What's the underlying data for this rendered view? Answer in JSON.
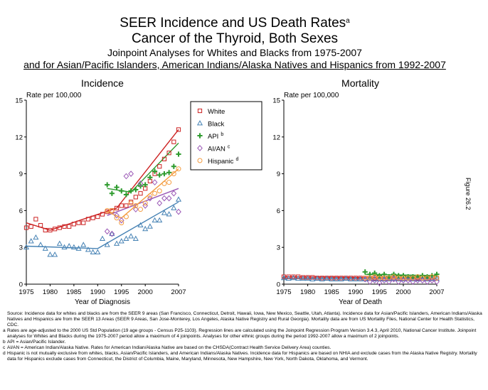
{
  "title": {
    "line1": "SEER Incidence and US Death Rates",
    "line1_sup": "a",
    "line2": "Cancer of the Thyroid, Both Sexes",
    "line3": "Joinpoint Analyses for Whites and Blacks from 1975-2007",
    "line4": "and for Asian/Pacific Islanders, American Indians/Alaska Natives and Hispanics from 1992-2007"
  },
  "figure_label": "Figure 26.2",
  "legend": [
    {
      "key": "white",
      "label": "White",
      "sup": "",
      "color": "#cc2222",
      "marker": "square"
    },
    {
      "key": "black",
      "label": "Black",
      "sup": "",
      "color": "#4682b4",
      "marker": "triangle"
    },
    {
      "key": "api",
      "label": "API",
      "sup": "b",
      "color": "#2e9b2e",
      "marker": "plus"
    },
    {
      "key": "aian",
      "label": "AI/AN",
      "sup": "c",
      "color": "#9b59b6",
      "marker": "diamond"
    },
    {
      "key": "hisp",
      "label": "Hispanic",
      "sup": "d",
      "color": "#f39c40",
      "marker": "circle"
    }
  ],
  "chart_data": [
    {
      "type": "scatter",
      "title": "Incidence",
      "ylabel": "Rate per 100,000",
      "xlabel": "Year of Diagnosis",
      "ylim": [
        0,
        15
      ],
      "xlim": [
        1975,
        2007
      ],
      "yticks": [
        0,
        3,
        6,
        9,
        12,
        15
      ],
      "xticks": [
        "1975",
        "1980",
        "1985",
        "1990",
        "1995",
        "2000",
        "2007"
      ],
      "xtick_values": [
        1975,
        1980,
        1985,
        1990,
        1995,
        2000,
        2007
      ],
      "series": [
        {
          "key": "white",
          "x_start": 1975,
          "values": [
            4.6,
            4.7,
            5.3,
            4.8,
            4.4,
            4.4,
            4.5,
            4.6,
            4.7,
            4.7,
            4.9,
            5.0,
            5.0,
            5.3,
            5.4,
            5.5,
            5.7,
            5.9,
            6.0,
            6.2,
            6.4,
            6.4,
            6.7,
            7.1,
            7.4,
            7.8,
            8.4,
            9.0,
            9.6,
            10.2,
            10.7,
            11.6,
            12.6
          ],
          "fit_x": [
            1975,
            1980,
            1994,
            2007
          ],
          "fit_y": [
            5.0,
            4.4,
            6.2,
            12.6
          ]
        },
        {
          "key": "black",
          "x_start": 1975,
          "values": [
            3.0,
            3.5,
            3.8,
            3.2,
            2.9,
            2.4,
            2.4,
            3.3,
            3.0,
            3.1,
            3.0,
            2.9,
            3.2,
            2.8,
            2.6,
            2.6,
            3.7,
            3.2,
            4.1,
            3.3,
            3.5,
            3.7,
            3.9,
            3.7,
            4.8,
            4.5,
            4.7,
            5.2,
            5.2,
            5.8,
            5.7,
            6.2,
            6.9
          ],
          "fit_x": [
            1975,
            1990,
            2007
          ],
          "fit_y": [
            3.1,
            2.9,
            6.7
          ]
        },
        {
          "key": "api",
          "x_start": 1992,
          "values": [
            8.1,
            7.4,
            7.9,
            7.6,
            7.3,
            7.6,
            7.7,
            8.0,
            8.1,
            8.7,
            9.2,
            8.9,
            9.0,
            9.1,
            9.6,
            10.6
          ],
          "fit_x": [
            1992,
            1997,
            2007
          ],
          "fit_y": [
            7.8,
            7.5,
            11.5
          ]
        },
        {
          "key": "aian",
          "x_start": 1992,
          "values": [
            4.3,
            4.1,
            5.6,
            5.2,
            8.8,
            9.0,
            6.1,
            8.2,
            6.4,
            7.0,
            8.3,
            6.6,
            7.0,
            7.0,
            7.4,
            5.9
          ],
          "fit_x": [
            1992,
            2007
          ],
          "fit_y": [
            5.6,
            7.8
          ]
        },
        {
          "key": "hisp",
          "x_start": 1992,
          "values": [
            6.0,
            6.0,
            5.4,
            5.0,
            5.5,
            6.6,
            6.4,
            6.1,
            6.6,
            7.2,
            7.4,
            7.6,
            8.2,
            8.3,
            9.0,
            9.4
          ],
          "fit_x": [
            1992,
            1995,
            2007
          ],
          "fit_y": [
            5.9,
            5.4,
            9.4
          ]
        }
      ]
    },
    {
      "type": "scatter",
      "title": "Mortality",
      "ylabel": "Rate per 100,000",
      "xlabel": "Year of Death",
      "ylim": [
        0,
        15
      ],
      "xlim": [
        1975,
        2007
      ],
      "yticks": [
        0,
        3,
        6,
        9,
        12,
        15
      ],
      "xticks": [
        "1975",
        "1980",
        "1985",
        "1990",
        "1995",
        "2000",
        "2007"
      ],
      "xtick_values": [
        1975,
        1980,
        1985,
        1990,
        1995,
        2000,
        2007
      ],
      "series": [
        {
          "key": "white",
          "x_start": 1975,
          "values": [
            0.6,
            0.6,
            0.6,
            0.6,
            0.55,
            0.55,
            0.55,
            0.5,
            0.5,
            0.5,
            0.5,
            0.5,
            0.5,
            0.5,
            0.5,
            0.5,
            0.5,
            0.5,
            0.5,
            0.5,
            0.5,
            0.5,
            0.5,
            0.5,
            0.5,
            0.5,
            0.5,
            0.5,
            0.5,
            0.5,
            0.5,
            0.5,
            0.5
          ],
          "fit_x": [
            1975,
            2007
          ],
          "fit_y": [
            0.6,
            0.5
          ]
        },
        {
          "key": "black",
          "x_start": 1975,
          "values": [
            0.5,
            0.45,
            0.5,
            0.45,
            0.45,
            0.45,
            0.4,
            0.45,
            0.4,
            0.45,
            0.4,
            0.4,
            0.4,
            0.45,
            0.4,
            0.4,
            0.4,
            0.4,
            0.45,
            0.4,
            0.4,
            0.4,
            0.4,
            0.45,
            0.4,
            0.4,
            0.45,
            0.4,
            0.4,
            0.45,
            0.4,
            0.45,
            0.45
          ],
          "fit_x": [
            1975,
            2007
          ],
          "fit_y": [
            0.45,
            0.45
          ]
        },
        {
          "key": "api",
          "x_start": 1992,
          "values": [
            1.0,
            0.8,
            0.9,
            0.7,
            0.8,
            0.6,
            0.8,
            0.7,
            0.7,
            0.6,
            0.6,
            0.6,
            0.7,
            0.6,
            0.7,
            0.8
          ],
          "fit_x": [
            1992,
            2007
          ],
          "fit_y": [
            0.8,
            0.7
          ]
        },
        {
          "key": "aian",
          "x_start": 1992,
          "values": [
            0.4,
            0.2,
            0.3,
            0.1,
            0.3,
            0.2,
            0.4,
            0.2,
            0.3,
            0.3,
            0.2,
            0.3,
            0.3,
            0.2,
            0.3,
            0.2
          ],
          "fit_x": [
            1992,
            2007
          ],
          "fit_y": [
            0.3,
            0.3
          ]
        },
        {
          "key": "hisp",
          "x_start": 1992,
          "values": [
            0.5,
            0.5,
            0.6,
            0.5,
            0.5,
            0.5,
            0.6,
            0.5,
            0.5,
            0.5,
            0.5,
            0.6,
            0.5,
            0.5,
            0.6,
            0.5
          ],
          "fit_x": [
            1992,
            2007
          ],
          "fit_y": [
            0.5,
            0.5
          ]
        }
      ]
    }
  ],
  "footnotes": [
    {
      "mark": "",
      "text": "Source:  Incidence data for whites and blacks are from the SEER 9 areas (San Francisco, Connecticut, Detroit, Hawaii, Iowa, New Mexico, Seattle, Utah, Atlanta).  Incidence data for Asian/Pacific Islanders, American Indians/Alaska Natives and Hispanics are from the SEER 13 Areas (SEER 9 Areas, San Jose-Monterey, Los Angeles, Alaska Native Registry and Rural Georgia).  Mortality data are from US Mortality Files, National Center for Health Statistics, CDC."
    },
    {
      "mark": "a",
      "text": "Rates are age-adjusted to the 2000 US Std Population (19 age groups - Census P25-1103).  Regression lines are calculated using the Joinpoint Regression Program Version 3.4.3, April 2010, National Cancer Institute.  Joinpoint analyses for Whites and Blacks during the 1975-2007 period allow a maximum of 4 joinpoints.  Analyses for other ethnic groups during the period 1992-2007 allow a maximum of 2 joinpoints."
    },
    {
      "mark": "b",
      "text": "API = Asian/Pacific Islander."
    },
    {
      "mark": "c",
      "text": "AI/AN = American Indian/Alaska Native.  Rates for American Indian/Alaska Native are based on the CHSDA(Contract Health Service Delivery Area) counties."
    },
    {
      "mark": "d",
      "text": "Hispanic is not mutually exclusive from whites, blacks, Asian/Pacific Islanders, and American Indians/Alaska Natives.  Incidence data for Hispanics are based on NHIA and exclude cases from the Alaska Native Registry.  Mortality data for Hispanics exclude cases from Connecticut, the District of Columbia, Maine, Maryland, Minnesota, New Hampshire, New York, North Dakota, Oklahoma, and Vermont."
    }
  ]
}
